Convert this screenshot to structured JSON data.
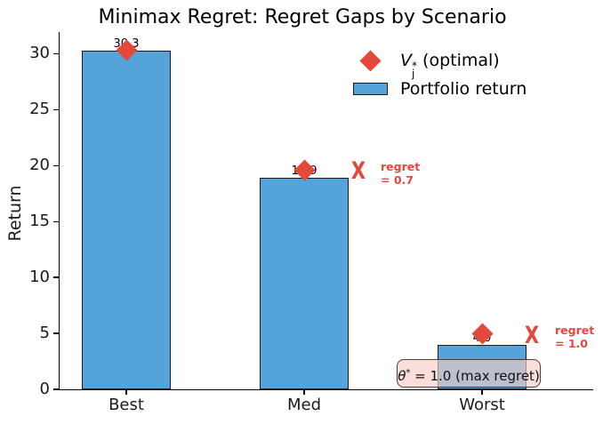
{
  "chart_data": {
    "type": "bar",
    "title": "Minimax Regret: Regret Gaps by Scenario",
    "ylabel": "Return",
    "xlabel": "",
    "categories": [
      "Best",
      "Med",
      "Worst"
    ],
    "series": [
      {
        "name": "Portfolio return",
        "type": "bar",
        "values": [
          30.3,
          18.9,
          4.0
        ],
        "color": "#54A3DB"
      },
      {
        "name": "V_j* (optimal)",
        "type": "scatter",
        "marker": "diamond",
        "values": [
          30.3,
          19.6,
          5.0
        ],
        "color": "#E4483B"
      }
    ],
    "bar_value_labels": [
      "30.3",
      "18.9",
      "4.0"
    ],
    "yticks": [
      "0",
      "5",
      "10",
      "15",
      "20",
      "25",
      "30"
    ],
    "ytick_values": [
      0,
      5,
      10,
      15,
      20,
      25,
      30
    ],
    "ylim": [
      0,
      31.7
    ],
    "grid": false,
    "legend_position": "upper right",
    "annotations": [
      {
        "target": "Med",
        "text": "regret = 0.7",
        "regret": 0.7
      },
      {
        "target": "Worst",
        "text": "regret = 1.0",
        "regret": 1.0
      },
      {
        "target": "Worst",
        "text": "θ* = 1.0 (max regret)",
        "theta_star": 1.0
      }
    ]
  },
  "title": "Minimax Regret: Regret Gaps by Scenario",
  "ylabel": "Return",
  "legend": {
    "optimal": {
      "v": "V",
      "sub": "j",
      "sup": "*",
      "rest": " (optimal)"
    },
    "portfolio": "Portfolio return"
  },
  "annotations": {
    "med": {
      "x_mark": "X",
      "line1": "regret",
      "line2": "= 0.7"
    },
    "worst": {
      "x_mark": "X",
      "line1": "regret",
      "line2": "= 1.0"
    },
    "theta_box": {
      "sym": "θ",
      "sup": "*",
      "rest": " = 1.0 (max regret)"
    }
  },
  "colors": {
    "bar": "#54A3DB",
    "accent_red": "#E4483B",
    "box_fill": "rgba(246,205,197,0.66)",
    "box_edge": "#4a3d3d"
  }
}
